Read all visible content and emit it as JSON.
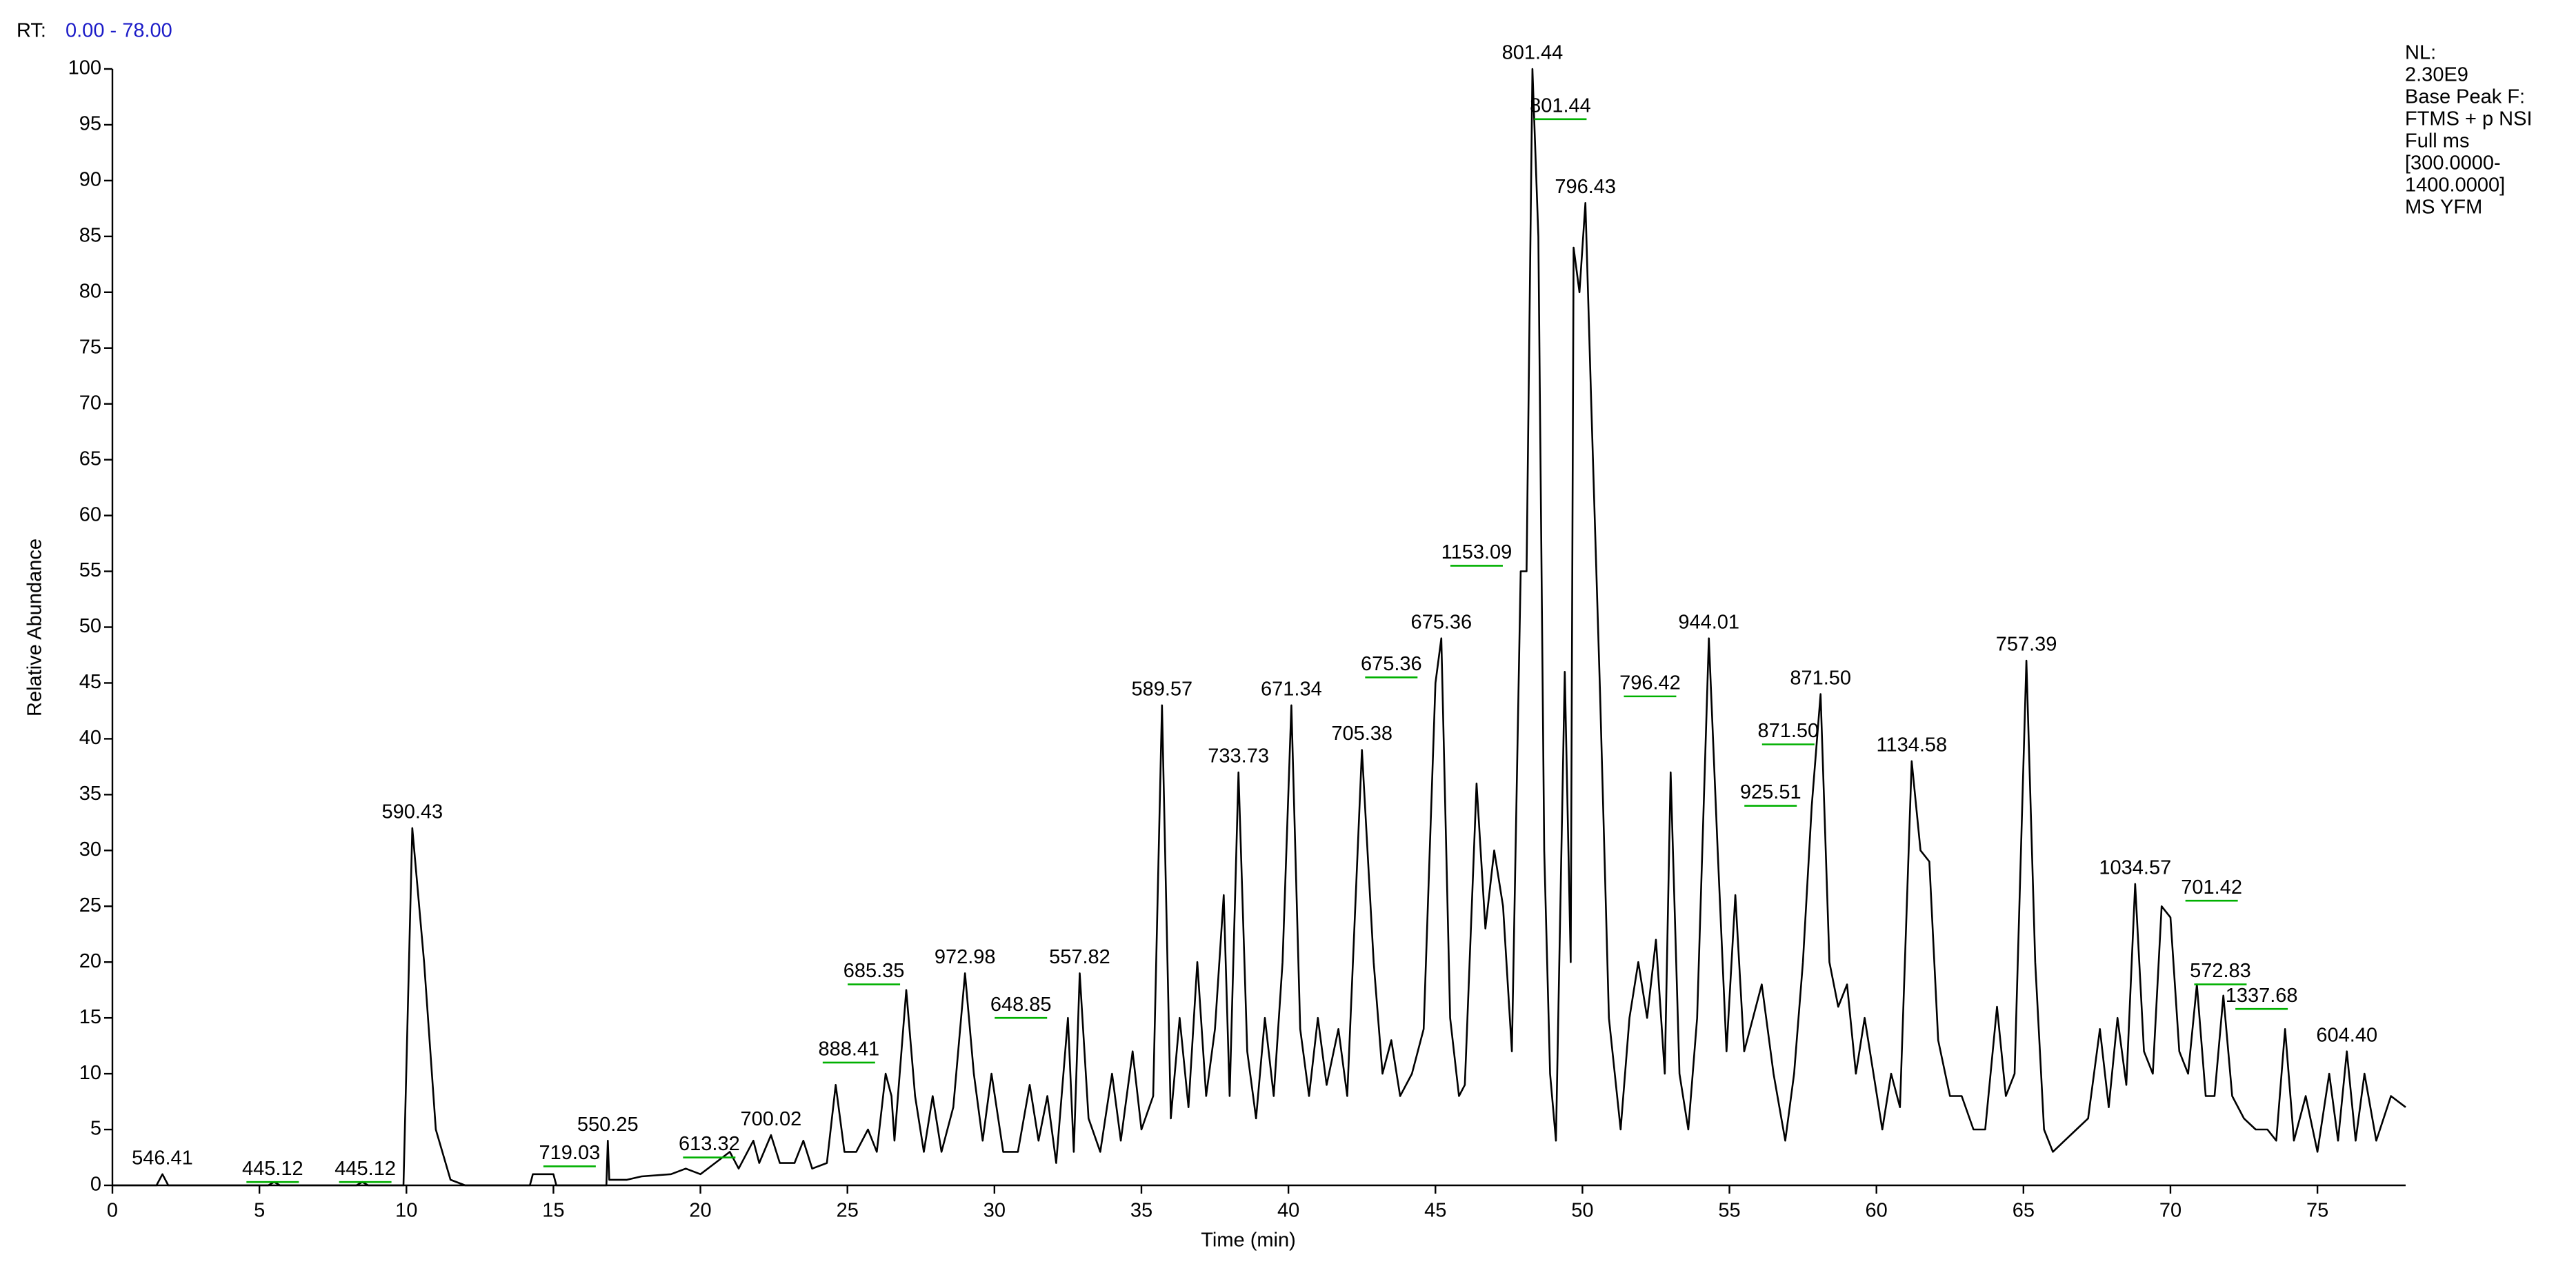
{
  "rt_label": "RT:",
  "rt_range": "0.00 - 78.00",
  "info_lines": [
    "NL:",
    "2.30E9",
    "Base Peak F:",
    "FTMS + p NSI",
    "Full ms",
    "[300.0000-",
    "1400.0000]",
    "MS YFM"
  ],
  "chart_data": {
    "type": "line",
    "x_label": "Time (min)",
    "y_label": "Relative Abundance",
    "xlim": [
      0,
      78
    ],
    "ylim": [
      0,
      100
    ],
    "xticks": [
      0,
      5,
      10,
      15,
      20,
      25,
      30,
      35,
      40,
      45,
      50,
      55,
      60,
      65,
      70,
      75
    ],
    "yticks": [
      0,
      5,
      10,
      15,
      20,
      25,
      30,
      35,
      40,
      45,
      50,
      55,
      60,
      65,
      70,
      75,
      80,
      85,
      90,
      95,
      100
    ],
    "color": "#000000",
    "leader_color": "#00b000",
    "x": [
      0,
      1.5,
      1.7,
      1.9,
      5.3,
      5.5,
      5.7,
      8.3,
      8.5,
      8.7,
      9.9,
      10.2,
      10.6,
      11,
      11.5,
      12,
      14.2,
      14.3,
      15,
      15.1,
      16.8,
      16.85,
      16.9,
      17.5,
      18,
      19,
      19.5,
      20,
      20.5,
      21,
      21.3,
      21.8,
      22,
      22.4,
      22.7,
      23.2,
      23.5,
      23.8,
      24.3,
      24.6,
      24.9,
      25.3,
      25.7,
      26,
      26.3,
      26.5,
      26.6,
      27,
      27.3,
      27.6,
      27.9,
      28.2,
      28.6,
      29,
      29.3,
      29.6,
      29.9,
      30.3,
      30.8,
      31.2,
      31.5,
      31.8,
      32.1,
      32.5,
      32.7,
      32.9,
      33.2,
      33.6,
      34,
      34.3,
      34.7,
      35,
      35.4,
      35.7,
      36,
      36.3,
      36.6,
      36.9,
      37.2,
      37.5,
      37.8,
      38,
      38.3,
      38.6,
      38.9,
      39.2,
      39.5,
      39.8,
      40.1,
      40.4,
      40.7,
      41,
      41.3,
      41.7,
      42,
      42.5,
      42.9,
      43.2,
      43.5,
      43.8,
      44.2,
      44.6,
      45,
      45.2,
      45.5,
      45.8,
      46,
      46.4,
      46.7,
      47,
      47.3,
      47.6,
      47.9,
      48.1,
      48.3,
      48.5,
      48.7,
      48.9,
      49.1,
      49.4,
      49.6,
      49.7,
      49.9,
      50.1,
      50.3,
      50.6,
      50.9,
      51.3,
      51.6,
      51.9,
      52.2,
      52.5,
      52.8,
      53,
      53.3,
      53.6,
      53.9,
      54.3,
      54.6,
      54.9,
      55.2,
      55.5,
      55.8,
      56.1,
      56.5,
      56.9,
      57.2,
      57.5,
      57.8,
      58.1,
      58.4,
      58.7,
      59,
      59.3,
      59.6,
      59.9,
      60.2,
      60.5,
      60.8,
      61.2,
      61.5,
      61.8,
      62.1,
      62.5,
      62.9,
      63.3,
      63.7,
      64.1,
      64.4,
      64.7,
      65.1,
      65.4,
      65.7,
      66,
      66.4,
      66.8,
      67.2,
      67.6,
      67.9,
      68.2,
      68.5,
      68.8,
      69.1,
      69.4,
      69.7,
      70,
      70.3,
      70.6,
      70.9,
      71.2,
      71.5,
      71.8,
      72.1,
      72.5,
      72.9,
      73.3,
      73.6,
      73.9,
      74.2,
      74.6,
      75,
      75.4,
      75.7,
      76,
      76.3,
      76.6,
      77,
      77.5,
      78
    ],
    "values": [
      0,
      0,
      1,
      0,
      0,
      0.3,
      0,
      0,
      0.3,
      0,
      0,
      32,
      20,
      5,
      0.5,
      0,
      0,
      1,
      1,
      0,
      0,
      4,
      0.5,
      0.5,
      0.8,
      1,
      1.5,
      1,
      2,
      3,
      1.5,
      4,
      2,
      4.5,
      2,
      2,
      4,
      1.5,
      2,
      9,
      3,
      3,
      5,
      3,
      10,
      8,
      4,
      17.5,
      8,
      3,
      8,
      3,
      7,
      19,
      10,
      4,
      10,
      3,
      3,
      9,
      4,
      8,
      2,
      15,
      3,
      19,
      6,
      3,
      10,
      4,
      12,
      5,
      8,
      43,
      6,
      15,
      7,
      20,
      8,
      14,
      26,
      8,
      37,
      12,
      6,
      15,
      8,
      20,
      43,
      14,
      8,
      15,
      9,
      14,
      8,
      39,
      20,
      10,
      13,
      8,
      10,
      14,
      45,
      49,
      15,
      8,
      9,
      36,
      23,
      30,
      25,
      12,
      55,
      55,
      100,
      85,
      30,
      10,
      4,
      46,
      20,
      84,
      80,
      88,
      70,
      44,
      15,
      5,
      15,
      20,
      15,
      22,
      10,
      37,
      10,
      5,
      15,
      49,
      30,
      12,
      26,
      12,
      15,
      18,
      10,
      4,
      10,
      20,
      34,
      44,
      20,
      16,
      18,
      10,
      15,
      10,
      5,
      10,
      7,
      38,
      30,
      29,
      13,
      8,
      8,
      5,
      5,
      16,
      8,
      10,
      47,
      20,
      5,
      3,
      4,
      5,
      6,
      14,
      7,
      15,
      9,
      27,
      12,
      10,
      25,
      24,
      12,
      10,
      18,
      8,
      8,
      17,
      8,
      6,
      5,
      5,
      4,
      14,
      4,
      8,
      3,
      10,
      4,
      12,
      4,
      10,
      4,
      8,
      7
    ],
    "peak_labels": [
      {
        "label": "546.41",
        "x": 1.7,
        "y": 1,
        "leader": false
      },
      {
        "label": "445.12",
        "x": 5.45,
        "y": 0.3,
        "leader": true
      },
      {
        "label": "445.12",
        "x": 8.6,
        "y": 0.3,
        "leader": true
      },
      {
        "label": "590.43",
        "x": 10.2,
        "y": 32,
        "leader": false
      },
      {
        "label": "719.03",
        "x": 15.55,
        "y": 1.7,
        "leader": true
      },
      {
        "label": "550.25",
        "x": 16.85,
        "y": 4,
        "leader": false
      },
      {
        "label": "613.32",
        "x": 20.3,
        "y": 2.5,
        "leader": true
      },
      {
        "label": "700.02",
        "x": 22.4,
        "y": 4.5,
        "leader": false
      },
      {
        "label": "888.41",
        "x": 25.05,
        "y": 11,
        "leader": true
      },
      {
        "label": "685.35",
        "x": 25.9,
        "y": 18,
        "leader": true
      },
      {
        "label": "972.98",
        "x": 29,
        "y": 19,
        "leader": false
      },
      {
        "label": "648.85",
        "x": 30.9,
        "y": 15,
        "leader": true
      },
      {
        "label": "557.82",
        "x": 32.9,
        "y": 19,
        "leader": false
      },
      {
        "label": "589.57",
        "x": 35.7,
        "y": 43,
        "leader": false
      },
      {
        "label": "733.73",
        "x": 38.3,
        "y": 37,
        "leader": false
      },
      {
        "label": "671.34",
        "x": 40.1,
        "y": 43,
        "leader": false
      },
      {
        "label": "705.38",
        "x": 42.5,
        "y": 39,
        "leader": false
      },
      {
        "label": "675.36",
        "x": 43.5,
        "y": 45.5,
        "leader": true
      },
      {
        "label": "675.36",
        "x": 45.2,
        "y": 49,
        "leader": false
      },
      {
        "label": "1153.09",
        "x": 46.4,
        "y": 55.5,
        "leader": true
      },
      {
        "label": "801.44",
        "x": 48.3,
        "y": 100,
        "leader": false
      },
      {
        "label": "801.44",
        "x": 49.25,
        "y": 95.5,
        "leader": true
      },
      {
        "label": "796.43",
        "x": 50.1,
        "y": 88,
        "leader": false
      },
      {
        "label": "796.42",
        "x": 52.3,
        "y": 43.8,
        "leader": true
      },
      {
        "label": "944.01",
        "x": 54.3,
        "y": 49,
        "leader": false
      },
      {
        "label": "871.50",
        "x": 57,
        "y": 39.5,
        "leader": true
      },
      {
        "label": "925.51",
        "x": 56.4,
        "y": 34,
        "leader": true
      },
      {
        "label": "871.50",
        "x": 58.1,
        "y": 44,
        "leader": false
      },
      {
        "label": "1134.58",
        "x": 61.2,
        "y": 38,
        "leader": false
      },
      {
        "label": "757.39",
        "x": 65.1,
        "y": 47,
        "leader": false
      },
      {
        "label": "1034.57",
        "x": 68.8,
        "y": 27,
        "leader": false
      },
      {
        "label": "701.42",
        "x": 71.4,
        "y": 25.5,
        "leader": true
      },
      {
        "label": "572.83",
        "x": 71.7,
        "y": 18,
        "leader": true
      },
      {
        "label": "1337.68",
        "x": 73.1,
        "y": 15.8,
        "leader": true
      },
      {
        "label": "604.40",
        "x": 76,
        "y": 12,
        "leader": false
      }
    ]
  }
}
